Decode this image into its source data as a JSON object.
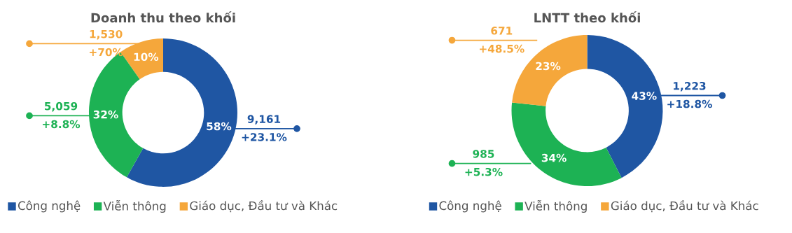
{
  "chart_data": [
    {
      "type": "donut",
      "title": "Doanh thu theo khối",
      "categories": [
        "Công nghệ",
        "Viễn thông",
        "Giáo dục, Đầu tư và Khác"
      ],
      "values": [
        9161,
        5059,
        1530
      ],
      "colors": [
        "#1f56a3",
        "#1db254",
        "#f5a73b"
      ],
      "value_labels": [
        "9,161",
        "5,059",
        "1,530"
      ],
      "legend": "bottom",
      "annotations": [
        {
          "text": "58%",
          "x": "Công nghệ"
        },
        {
          "text": "+23.1%",
          "x": "Công nghệ"
        },
        {
          "text": "32%",
          "x": "Viễn thông"
        },
        {
          "text": "+8.8%",
          "x": "Viễn thông"
        },
        {
          "text": "10%",
          "x": "Giáo dục, Đầu tư và Khác"
        },
        {
          "text": "+70%",
          "x": "Giáo dục, Đầu tư và Khác"
        }
      ]
    },
    {
      "type": "donut",
      "title": "LNTT theo khối",
      "categories": [
        "Công nghệ",
        "Viễn thông",
        "Giáo dục, Đầu tư và Khác"
      ],
      "values": [
        1223,
        985,
        671
      ],
      "colors": [
        "#1f56a3",
        "#1db254",
        "#f5a73b"
      ],
      "value_labels": [
        "1,223",
        "985",
        "671"
      ],
      "legend": "bottom",
      "annotations": [
        {
          "text": "43%",
          "x": "Công nghệ"
        },
        {
          "text": "+18.8%",
          "x": "Công nghệ"
        },
        {
          "text": "34%",
          "x": "Viễn thông"
        },
        {
          "text": "+5.3%",
          "x": "Viễn thông"
        },
        {
          "text": "23%",
          "x": "Giáo dục, Đầu tư và Khác"
        },
        {
          "text": "+48.5%",
          "x": "Giáo dục, Đầu tư và Khác"
        }
      ]
    }
  ]
}
